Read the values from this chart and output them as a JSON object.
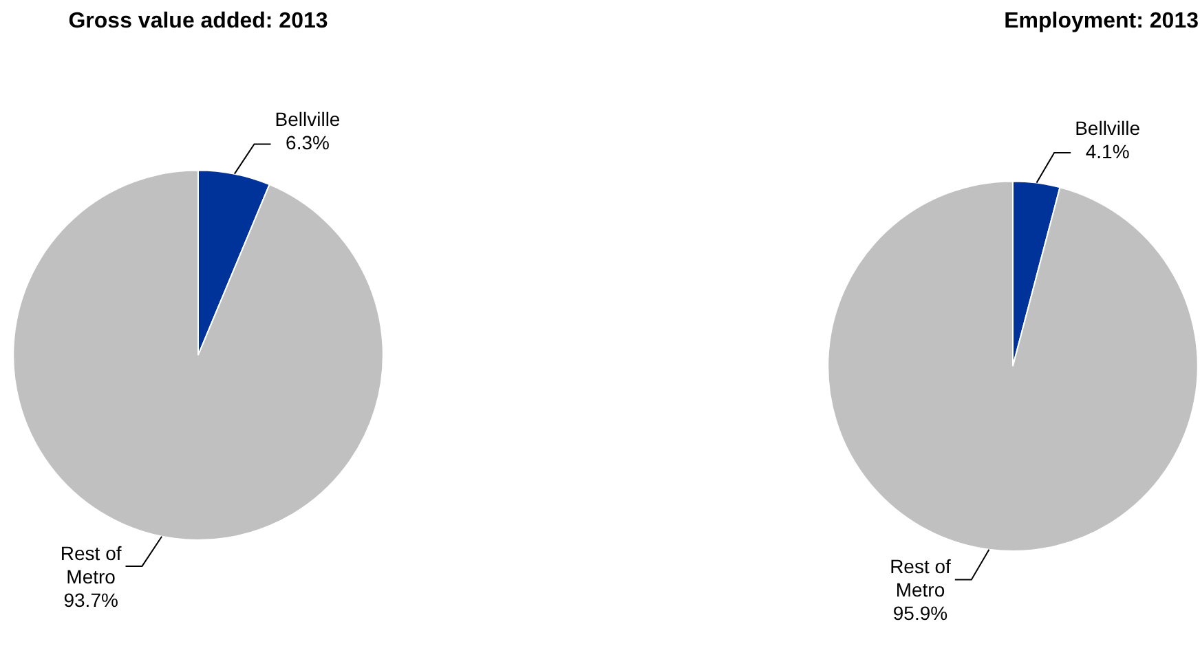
{
  "chart_data": [
    {
      "type": "pie",
      "title": "Gross value added: 2013",
      "categories": [
        "Bellville",
        "Rest of Metro"
      ],
      "values": [
        6.3,
        93.7
      ],
      "colors": [
        "#003399",
        "#c0c0c0"
      ],
      "value_labels": [
        "6.3%",
        "93.7%"
      ]
    },
    {
      "type": "pie",
      "title": "Employment: 2013",
      "categories": [
        "Bellville",
        "Rest of Metro"
      ],
      "values": [
        4.1,
        95.9
      ],
      "colors": [
        "#003399",
        "#c0c0c0"
      ],
      "value_labels": [
        "4.1%",
        "95.9%"
      ]
    }
  ]
}
